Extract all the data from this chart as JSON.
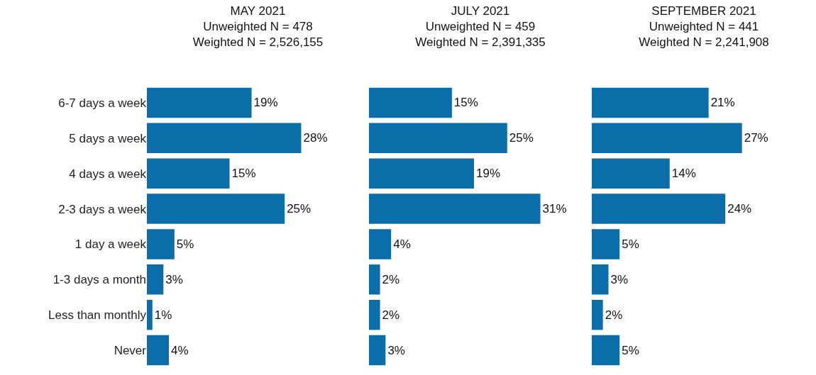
{
  "chart_data": [
    {
      "type": "bar",
      "orientation": "horizontal",
      "title": "MAY 2021",
      "subtitle": "Unweighted N = 478\nWeighted N = 2,526,155",
      "categories": [
        "6-7 days a week",
        "5 days a week",
        "4 days a week",
        "2-3 days a week",
        "1 day a week",
        "1-3 days a month",
        "Less than monthly",
        "Never"
      ],
      "values": [
        19,
        28,
        15,
        25,
        5,
        3,
        1,
        4
      ],
      "value_labels": [
        "19%",
        "28%",
        "15%",
        "25%",
        "5%",
        "3%",
        "1%",
        "4%"
      ],
      "color": "#0b6ea8",
      "tick_labels": "y",
      "legend": false,
      "grid": false
    },
    {
      "type": "bar",
      "orientation": "horizontal",
      "title": "JULY 2021",
      "subtitle": "Unweighted N = 459\nWeighted N = 2,391,335",
      "categories": [
        null,
        null,
        null,
        null,
        null,
        null,
        null,
        null
      ],
      "values": [
        15,
        25,
        19,
        31,
        4,
        2,
        2,
        3
      ],
      "value_labels": [
        "15%",
        "25%",
        "19%",
        "31%",
        "4%",
        "2%",
        "2%",
        "3%"
      ],
      "color": "#0b6ea8",
      "legend": false,
      "grid": false
    },
    {
      "type": "bar",
      "orientation": "horizontal",
      "title": "SEPTEMBER 2021",
      "subtitle": "Unweighted N = 441\nWeighted N = 2,241,908",
      "categories": [
        null,
        null,
        null,
        null,
        null,
        null,
        null,
        null
      ],
      "values": [
        21,
        27,
        14,
        24,
        5,
        3,
        2,
        5
      ],
      "value_labels": [
        "21%",
        "27%",
        "14%",
        "24%",
        "5%",
        "3%",
        "2%",
        "5%"
      ],
      "color": "#0b6ea8",
      "legend": false,
      "grid": false
    }
  ]
}
